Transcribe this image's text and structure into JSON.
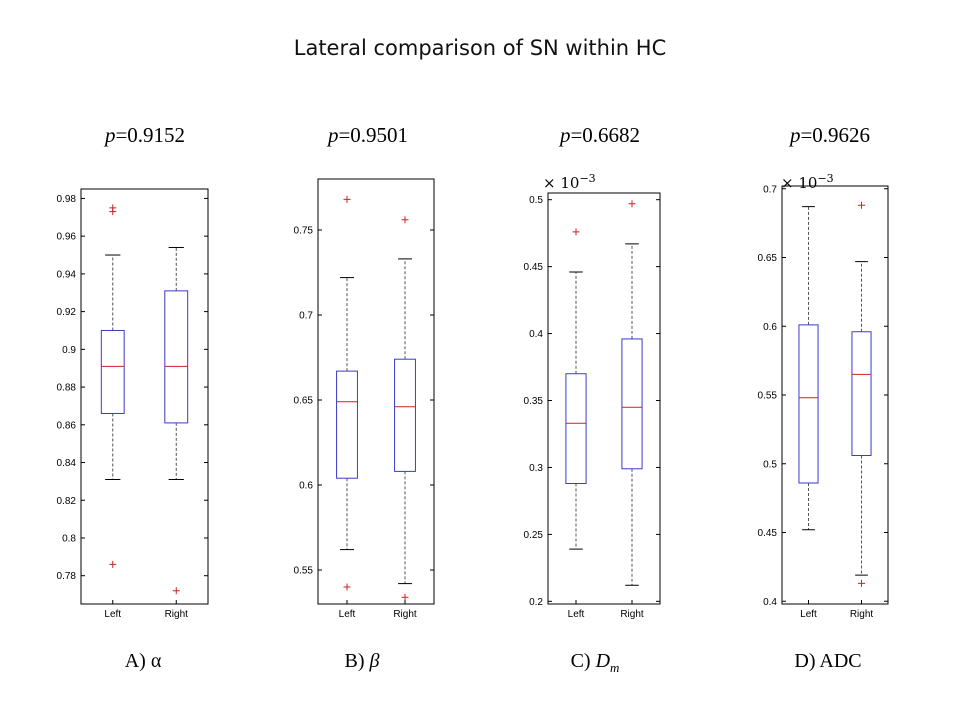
{
  "title": "Lateral comparison of SN within HC",
  "colors": {
    "box": "#3a3acc",
    "median": "#cc2222",
    "outlier": "#cc2222",
    "whisker": "#555555",
    "axis": "#000000"
  },
  "chart_data": [
    {
      "type": "box",
      "id": "A",
      "p_label": "p",
      "p_value": "=0.9152",
      "caption_prefix": "A) ",
      "caption_var": "α",
      "caption_sub": "",
      "scale_label": "",
      "ylim": [
        0.765,
        0.985
      ],
      "yticks": [
        "0.78",
        "0.8",
        "0.82",
        "0.84",
        "0.86",
        "0.88",
        "0.9",
        "0.92",
        "0.94",
        "0.96",
        "0.98"
      ],
      "categories": [
        "Left",
        "Right"
      ],
      "boxes": [
        {
          "name": "Left",
          "whisker_low": 0.831,
          "q1": 0.866,
          "median": 0.891,
          "q3": 0.91,
          "whisker_high": 0.95,
          "outliers": [
            0.975,
            0.973,
            0.786
          ]
        },
        {
          "name": "Right",
          "whisker_low": 0.831,
          "q1": 0.861,
          "median": 0.891,
          "q3": 0.931,
          "whisker_high": 0.954,
          "outliers": [
            0.772
          ]
        }
      ]
    },
    {
      "type": "box",
      "id": "B",
      "p_label": "p",
      "p_value": "=0.9501",
      "caption_prefix": "B) ",
      "caption_var": "β",
      "caption_sub": "",
      "scale_label": "",
      "ylim": [
        0.53,
        0.78
      ],
      "yticks": [
        "0.55",
        "0.6",
        "0.65",
        "0.7",
        "0.75"
      ],
      "categories": [
        "Left",
        "Right"
      ],
      "boxes": [
        {
          "name": "Left",
          "whisker_low": 0.562,
          "q1": 0.604,
          "median": 0.649,
          "q3": 0.667,
          "whisker_high": 0.722,
          "outliers": [
            0.768,
            0.54
          ]
        },
        {
          "name": "Right",
          "whisker_low": 0.542,
          "q1": 0.608,
          "median": 0.646,
          "q3": 0.674,
          "whisker_high": 0.733,
          "outliers": [
            0.756,
            0.534
          ]
        }
      ]
    },
    {
      "type": "box",
      "id": "C",
      "p_label": "p",
      "p_value": "=0.6682",
      "caption_prefix": "C) ",
      "caption_var": "D",
      "caption_sub": "m",
      "scale_label": "× 10",
      "scale_exp": "−3",
      "ylim": [
        0.198,
        0.505
      ],
      "yticks": [
        "0.2",
        "0.25",
        "0.3",
        "0.35",
        "0.4",
        "0.45",
        "0.5"
      ],
      "categories": [
        "Left",
        "Right"
      ],
      "boxes": [
        {
          "name": "Left",
          "whisker_low": 0.239,
          "q1": 0.288,
          "median": 0.333,
          "q3": 0.37,
          "whisker_high": 0.446,
          "outliers": [
            0.476
          ]
        },
        {
          "name": "Right",
          "whisker_low": 0.212,
          "q1": 0.299,
          "median": 0.345,
          "q3": 0.396,
          "whisker_high": 0.467,
          "outliers": [
            0.497
          ]
        }
      ]
    },
    {
      "type": "box",
      "id": "D",
      "p_label": "p",
      "p_value": "=0.9626",
      "caption_prefix": "D) ",
      "caption_var": "ADC",
      "caption_sub": "",
      "scale_label": "× 10",
      "scale_exp": "−3",
      "ylim": [
        0.398,
        0.702
      ],
      "yticks": [
        "0.4",
        "0.45",
        "0.5",
        "0.55",
        "0.6",
        "0.65",
        "0.7"
      ],
      "categories": [
        "Left",
        "Right"
      ],
      "boxes": [
        {
          "name": "Left",
          "whisker_low": 0.452,
          "q1": 0.486,
          "median": 0.548,
          "q3": 0.601,
          "whisker_high": 0.687,
          "outliers": []
        },
        {
          "name": "Right",
          "whisker_low": 0.419,
          "q1": 0.506,
          "median": 0.565,
          "q3": 0.596,
          "whisker_high": 0.647,
          "outliers": [
            0.688,
            0.413
          ]
        }
      ]
    }
  ]
}
